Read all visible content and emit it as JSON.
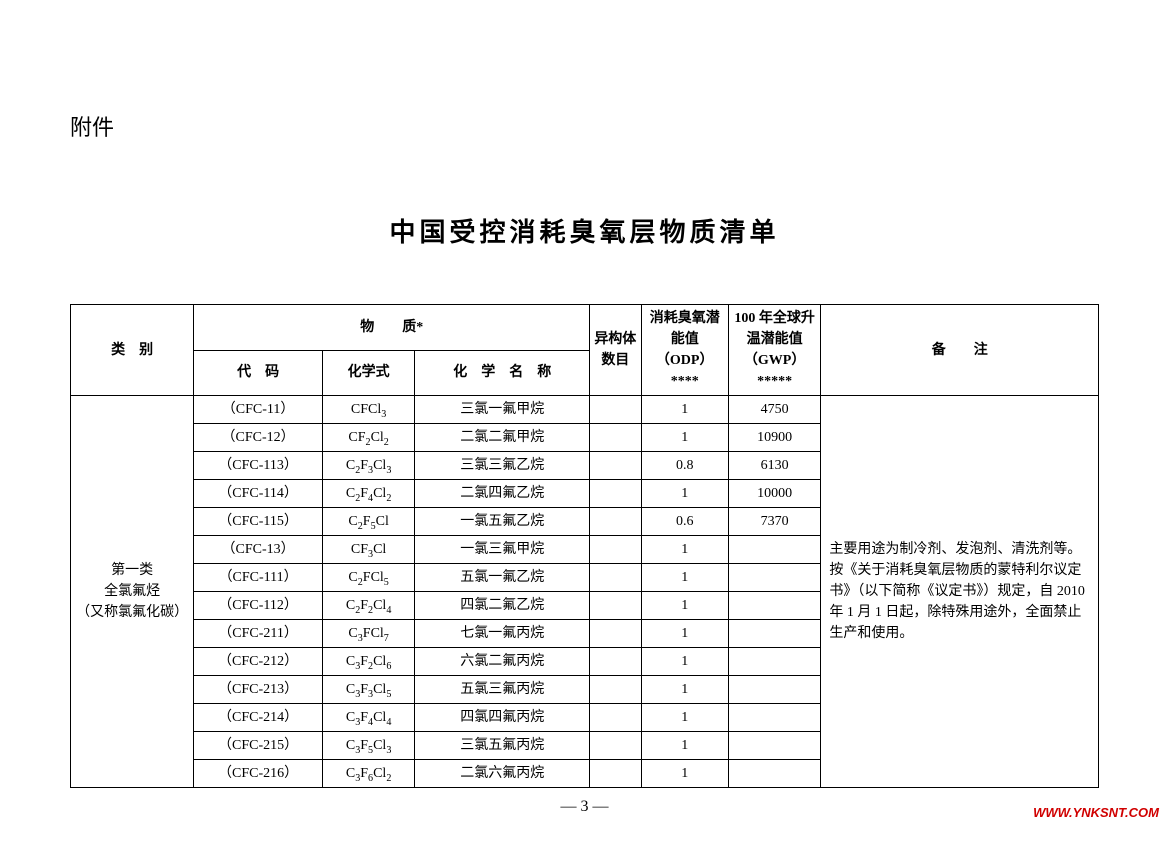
{
  "attachment_label": "附件",
  "title": "中国受控消耗臭氧层物质清单",
  "headers": {
    "category": "类　别",
    "substance": "物　　质*",
    "code": "代　码",
    "formula": "化学式",
    "chemname": "化　学　名　称",
    "isomers": "异构体数目",
    "odp": "消耗臭氧潜能值（ODP）****",
    "gwp": "100 年全球升温潜能值（GWP）*****",
    "remark": "备　　注"
  },
  "category_label": "第一类\n全氯氟烃\n（又称氯氟化碳）",
  "remark_text": "主要用途为制冷剂、发泡剂、清洗剂等。按《关于消耗臭氧层物质的蒙特利尔议定书》（以下简称《议定书》）规定，自 2010年 1 月 1 日起，除特殊用途外，全面禁止生产和使用。",
  "rows": [
    {
      "code": "（CFC-11）",
      "formula": "CFCl<sub>3</sub>",
      "name": "三氯一氟甲烷",
      "iso": "",
      "odp": "1",
      "gwp": "4750"
    },
    {
      "code": "（CFC-12）",
      "formula": "CF<sub>2</sub>Cl<sub>2</sub>",
      "name": "二氯二氟甲烷",
      "iso": "",
      "odp": "1",
      "gwp": "10900"
    },
    {
      "code": "（CFC-113）",
      "formula": "C<sub>2</sub>F<sub>3</sub>Cl<sub>3</sub>",
      "name": "三氯三氟乙烷",
      "iso": "",
      "odp": "0.8",
      "gwp": "6130"
    },
    {
      "code": "（CFC-114）",
      "formula": "C<sub>2</sub>F<sub>4</sub>Cl<sub>2</sub>",
      "name": "二氯四氟乙烷",
      "iso": "",
      "odp": "1",
      "gwp": "10000"
    },
    {
      "code": "（CFC-115）",
      "formula": "C<sub>2</sub>F<sub>5</sub>Cl",
      "name": "一氯五氟乙烷",
      "iso": "",
      "odp": "0.6",
      "gwp": "7370"
    },
    {
      "code": "（CFC-13）",
      "formula": "CF<sub>3</sub>Cl",
      "name": "一氯三氟甲烷",
      "iso": "",
      "odp": "1",
      "gwp": ""
    },
    {
      "code": "（CFC-111）",
      "formula": "C<sub>2</sub>FCl<sub>5</sub>",
      "name": "五氯一氟乙烷",
      "iso": "",
      "odp": "1",
      "gwp": ""
    },
    {
      "code": "（CFC-112）",
      "formula": "C<sub>2</sub>F<sub>2</sub>Cl<sub>4</sub>",
      "name": "四氯二氟乙烷",
      "iso": "",
      "odp": "1",
      "gwp": ""
    },
    {
      "code": "（CFC-211）",
      "formula": "C<sub>3</sub>FCl<sub>7</sub>",
      "name": "七氯一氟丙烷",
      "iso": "",
      "odp": "1",
      "gwp": ""
    },
    {
      "code": "（CFC-212）",
      "formula": "C<sub>3</sub>F<sub>2</sub>Cl<sub>6</sub>",
      "name": "六氯二氟丙烷",
      "iso": "",
      "odp": "1",
      "gwp": ""
    },
    {
      "code": "（CFC-213）",
      "formula": "C<sub>3</sub>F<sub>3</sub>Cl<sub>5</sub>",
      "name": "五氯三氟丙烷",
      "iso": "",
      "odp": "1",
      "gwp": ""
    },
    {
      "code": "（CFC-214）",
      "formula": "C<sub>3</sub>F<sub>4</sub>Cl<sub>4</sub>",
      "name": "四氯四氟丙烷",
      "iso": "",
      "odp": "1",
      "gwp": ""
    },
    {
      "code": "（CFC-215）",
      "formula": "C<sub>3</sub>F<sub>5</sub>Cl<sub>3</sub>",
      "name": "三氯五氟丙烷",
      "iso": "",
      "odp": "1",
      "gwp": ""
    },
    {
      "code": "（CFC-216）",
      "formula": "C<sub>3</sub>F<sub>6</sub>Cl<sub>2</sub>",
      "name": "二氯六氟丙烷",
      "iso": "",
      "odp": "1",
      "gwp": ""
    }
  ],
  "page_number": "—  3  —",
  "watermark": "WWW.YNKSNT.COM"
}
